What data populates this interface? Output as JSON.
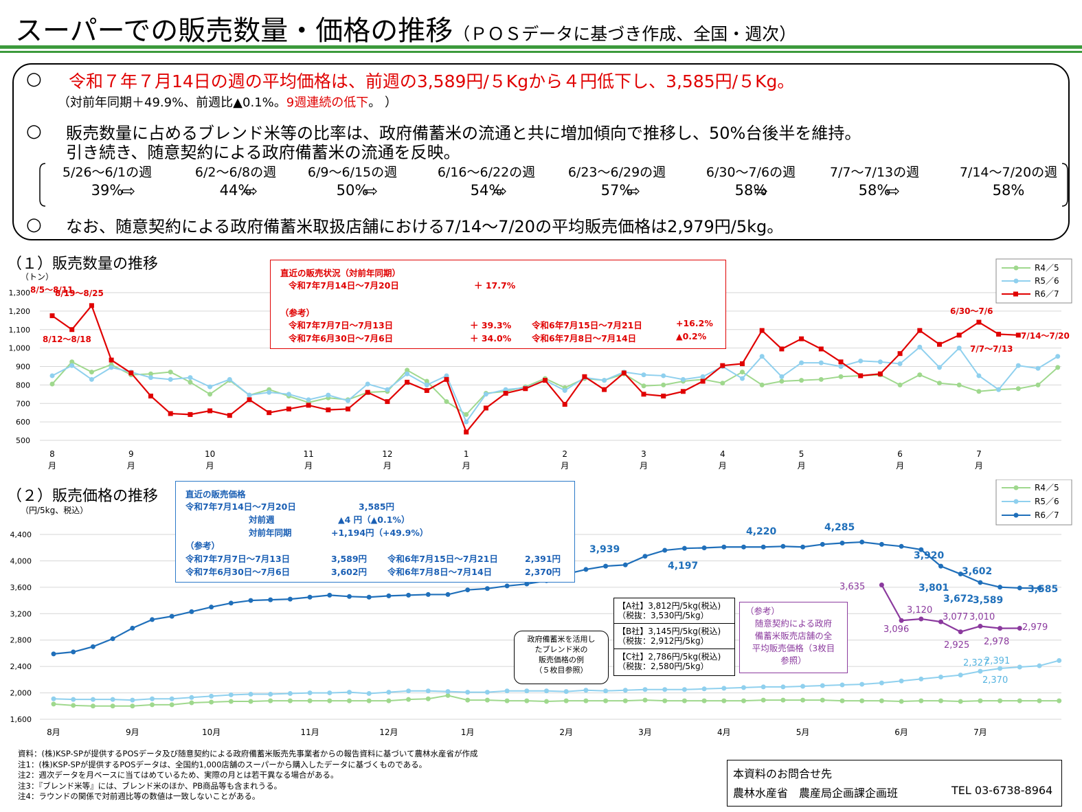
{
  "header": {
    "title": "スーパーでの販売数量・価格の推移",
    "subtitle": "（ＰＯＳデータに基づき作成、全国・週次）"
  },
  "summary": {
    "bullet": "○",
    "line1": "令和７年７月14日の週の平均価格は、前週の3,589円/５Kgから４円低下し、3,585円/５Kg。",
    "line1b_pre": "（対前年同期＋49.9%、前週比▲0.1%。",
    "line1b_red": "9週連続の低下",
    "line1b_post": "。 ）",
    "line2a": "販売数量に占めるブレンド米等の比率は、政府備蓄米の流通と共に増加傾向で推移し、50%台後半を維持。",
    "line2b": "引き続き、随意契約による政府備蓄米の流通を反映。",
    "weeks": [
      {
        "label": "5/26～6/1の週",
        "pct": "39%"
      },
      {
        "label": "6/2～6/8の週",
        "pct": "44%"
      },
      {
        "label": "6/9～6/15の週",
        "pct": "50%"
      },
      {
        "label": "6/16～6/22の週",
        "pct": "54%"
      },
      {
        "label": "6/23～6/29の週",
        "pct": "57%"
      },
      {
        "label": "6/30～7/6の週",
        "pct": "58%"
      },
      {
        "label": "7/7～7/13の週",
        "pct": "58%"
      },
      {
        "label": "7/14～7/20の週",
        "pct": "58%"
      }
    ],
    "arrow": "⇨",
    "line3": "なお、随意契約による政府備蓄米取扱店舗における7/14～7/20の平均販売価格は2,979円/5kg。"
  },
  "section1": {
    "title": "（１）販売数量の推移",
    "unit": "（トン）",
    "box": {
      "h": "直近の販売状況（対前年同期）",
      "r1l": "令和7年7月14日～7月20日",
      "r1v": "＋ 17.7%",
      "ref": "（参考）",
      "r2l": "令和7年7月7日～7月13日",
      "r2v": "＋ 39.3%",
      "r2c": "令和6年7月15日～7月21日",
      "r2cv": "+16.2%",
      "r3l": "令和7年6月30日～7月6日",
      "r3v": "＋ 34.0%",
      "r3c": "令和6年7月8日～7月14日",
      "r3cv": "▲0.2%"
    }
  },
  "section2": {
    "title": "（２）販売価格の推移",
    "unit": "（円/5kg、税込）",
    "box": {
      "h": "直近の販売価格",
      "r1l": "令和7年7月14日～7月20日",
      "r1v": "3,585円",
      "r2l": "対前週",
      "r2v": "▲4 円（▲0.1%）",
      "r3l": "対前年同期",
      "r3v": "+1,194円（+49.9%）",
      "ref": "（参考）",
      "r4l": "令和7年7月7日～7月13日",
      "r4v": "3,589円",
      "r4c": "令和6年7月15日～7月21日",
      "r4cv": "2,391円",
      "r5l": "令和7年6月30日～7月6日",
      "r5v": "3,602円",
      "r5c": "令和6年7月8日～7月14日",
      "r5cv": "2,370円"
    },
    "ex_label": [
      "政府備蓄米を活用し",
      "たブレンド米の",
      "販売価格の例",
      "（５枚目参照）"
    ],
    "companies": [
      [
        "【A社】3,812円/5kg(税込)",
        "（税抜：3,530円/5kg）"
      ],
      [
        "【B社】3,145円/5kg(税込)",
        "（税抜：2,912円/5kg）"
      ],
      [
        "【C社】2,786円/5kg(税込)",
        "（税抜：2,580円/5kg）"
      ]
    ],
    "ref_box": [
      "（参考）",
      "随意契約による政府",
      "備蓄米販売店舗の全",
      "平均販売価格（3枚目",
      "参照）"
    ]
  },
  "notes": [
    "資料：(株)KSP-SPが提供するPOSデータ及び随意契約による政府備蓄米販売先事業者からの報告資料に基づいて農林水産省が作成",
    "注1：(株)KSP-SPが提供するPOSデータは、全国約1,000店舗のスーパーから購入したデータに基づくものである。",
    "注2：週次データを月ベースに当てはめているため、実際の月とは若干異なる場合がある。",
    "注3：『ブレンド米等』には、ブレンド米のほか、PB商品等も含まれうる。",
    "注4：ラウンドの関係で対前週比等の数値は一致しないことがある。"
  ],
  "contact": {
    "l1": "本資料のお問合せ先",
    "l2": "農林水産省　農産局企画課企画班",
    "tel": "TEL 03-6738-8964"
  },
  "chart_data": [
    {
      "type": "line",
      "ylim": [
        500,
        1300
      ],
      "yticks": [
        "500",
        "600",
        "700",
        "800",
        "900",
        "1,000",
        "1,100",
        "1,200",
        "1,300"
      ],
      "months": [
        "8",
        "9",
        "10",
        "11",
        "12",
        "1",
        "2",
        "3",
        "4",
        "5",
        "6",
        "7"
      ],
      "month_unit": "月",
      "month_weeks": [
        0,
        4,
        8,
        13,
        17,
        21,
        26,
        30,
        34,
        38,
        43,
        47
      ],
      "series": [
        {
          "name": "R4／5",
          "color": "#9fd88d",
          "values": [
            805,
            925,
            870,
            910,
            855,
            860,
            870,
            815,
            750,
            825,
            745,
            775,
            740,
            705,
            730,
            720,
            760,
            765,
            880,
            820,
            710,
            640,
            755,
            765,
            790,
            835,
            785,
            835,
            825,
            860,
            795,
            800,
            820,
            830,
            810,
            870,
            800,
            820,
            825,
            830,
            845,
            850,
            855,
            800,
            855,
            810,
            800,
            765,
            775,
            780,
            800,
            895
          ]
        },
        {
          "name": "R5／6",
          "color": "#8fd0ee",
          "values": [
            850,
            905,
            830,
            895,
            870,
            840,
            830,
            840,
            790,
            830,
            745,
            760,
            750,
            720,
            745,
            715,
            805,
            775,
            860,
            800,
            850,
            600,
            750,
            775,
            785,
            825,
            770,
            840,
            825,
            870,
            855,
            850,
            830,
            845,
            900,
            835,
            955,
            845,
            920,
            920,
            900,
            930,
            925,
            915,
            1005,
            895,
            1000,
            850,
            775,
            905,
            890,
            955
          ]
        },
        {
          "name": "R6／7",
          "color": "#e00000",
          "values": [
            1175,
            1100,
            1230,
            935,
            865,
            740,
            645,
            640,
            660,
            635,
            720,
            650,
            670,
            690,
            665,
            670,
            760,
            710,
            815,
            770,
            830,
            545,
            675,
            755,
            780,
            825,
            695,
            845,
            775,
            865,
            750,
            740,
            765,
            820,
            905,
            915,
            1095,
            995,
            1050,
            995,
            925,
            850,
            860,
            970,
            1095,
            1020,
            1070,
            1140,
            1075,
            1070
          ]
        }
      ],
      "annotations": [
        "8/5～8/11",
        "8/12～8/18",
        "8/19～8/25",
        "6/30～7/6",
        "7/7～7/13",
        "7/14～7/20"
      ]
    },
    {
      "type": "line",
      "ylim": [
        1600,
        4400
      ],
      "yticks": [
        "1,600",
        "2,000",
        "2,400",
        "2,800",
        "3,200",
        "3,600",
        "4,000",
        "4,400"
      ],
      "months": [
        "8月",
        "9月",
        "10月",
        "11月",
        "12月",
        "1月",
        "2月",
        "3月",
        "4月",
        "5月",
        "6月",
        "7月"
      ],
      "series": [
        {
          "name": "R4／5",
          "color": "#9fd88d",
          "values": [
            1830,
            1810,
            1800,
            1800,
            1800,
            1820,
            1820,
            1850,
            1860,
            1870,
            1870,
            1880,
            1880,
            1880,
            1880,
            1880,
            1880,
            1880,
            1900,
            1910,
            1960,
            1890,
            1890,
            1880,
            1880,
            1870,
            1880,
            1880,
            1880,
            1880,
            1890,
            1880,
            1880,
            1880,
            1880,
            1880,
            1890,
            1890,
            1890,
            1890,
            1880,
            1880,
            1880,
            1870,
            1880,
            1880,
            1870,
            1880,
            1880,
            1880,
            1880,
            1880
          ]
        },
        {
          "name": "R5／6",
          "color": "#8fd0ee",
          "values": [
            1910,
            1900,
            1900,
            1900,
            1890,
            1910,
            1910,
            1930,
            1950,
            1970,
            1980,
            1980,
            1990,
            2000,
            2000,
            2010,
            1990,
            2010,
            2030,
            2030,
            2020,
            2010,
            2010,
            2030,
            2030,
            2030,
            2020,
            2040,
            2030,
            2040,
            2050,
            2050,
            2050,
            2060,
            2070,
            2080,
            2090,
            2090,
            2100,
            2110,
            2120,
            2130,
            2150,
            2180,
            2210,
            2240,
            2270,
            2327,
            2370,
            2391,
            2410,
            2490
          ]
        },
        {
          "name": "R6／7",
          "color": "#1f6fba",
          "values": [
            2590,
            2620,
            2700,
            2820,
            2980,
            3110,
            3160,
            3230,
            3300,
            3360,
            3400,
            3410,
            3420,
            3450,
            3480,
            3460,
            3450,
            3470,
            3480,
            3490,
            3490,
            3560,
            3580,
            3620,
            3650,
            3700,
            3800,
            3870,
            3920,
            3939,
            4070,
            4160,
            4190,
            4197,
            4210,
            4210,
            4210,
            4220,
            4210,
            4250,
            4270,
            4285,
            4250,
            4220,
            4170,
            3920,
            3801,
            3672,
            3602,
            3589,
            3585
          ]
        },
        {
          "name": "随意契約",
          "color": "#8b3a9e",
          "values": [
            3635,
            3096,
            3120,
            3077,
            2925,
            3010,
            2978,
            2979
          ]
        }
      ],
      "value_labels": [
        "3,939",
        "4,197",
        "4,220",
        "4,285",
        "3,920",
        "3,801",
        "3,672",
        "3,602",
        "3,589",
        "3,585",
        "2,327",
        "2,391",
        "2,370",
        "3,635",
        "3,096",
        "3,120",
        "3,077",
        "3,010",
        "2,925",
        "2,978",
        "2,979"
      ]
    }
  ]
}
